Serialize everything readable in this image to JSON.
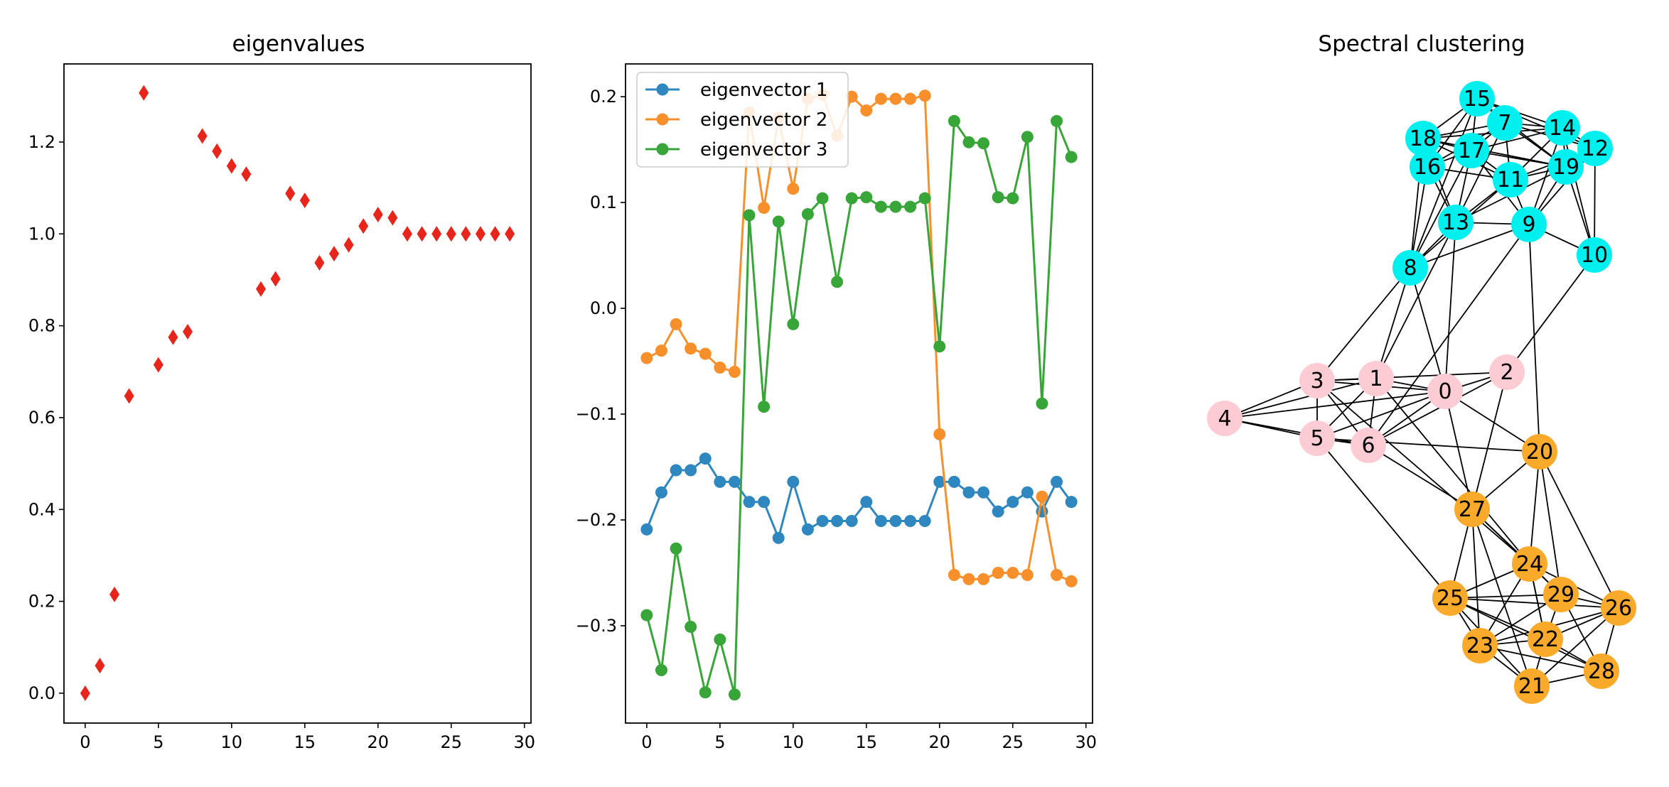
{
  "chart_data": [
    {
      "type": "scatter",
      "title": "eigenvalues",
      "xlabel": "",
      "ylabel": "",
      "xlim": [
        -1.45,
        30.45
      ],
      "ylim": [
        -0.065,
        1.37
      ],
      "xticks": [
        0,
        5,
        10,
        15,
        20,
        25,
        30
      ],
      "yticks": [
        0.0,
        0.2,
        0.4,
        0.6,
        0.8,
        1.0,
        1.2
      ],
      "ytick_labels": [
        "0.0",
        "0.2",
        "0.4",
        "0.6",
        "0.8",
        "1.0",
        "1.2"
      ],
      "marker": "diamond",
      "color": "#e8251b",
      "grid": false,
      "x": [
        0,
        1,
        2,
        3,
        4,
        5,
        6,
        7,
        8,
        9,
        10,
        11,
        12,
        13,
        14,
        15,
        16,
        17,
        18,
        19,
        20,
        21,
        22,
        23,
        24,
        25,
        26,
        27,
        28,
        29
      ],
      "y": [
        0.0,
        0.06,
        0.215,
        0.647,
        1.307,
        0.715,
        0.775,
        0.787,
        1.213,
        1.18,
        1.148,
        1.13,
        0.88,
        0.902,
        1.088,
        1.073,
        0.937,
        0.957,
        0.976,
        1.017,
        1.042,
        1.035,
        1.0,
        1.0,
        1.0,
        1.0,
        1.0,
        1.0,
        1.0,
        1.0
      ]
    },
    {
      "type": "line",
      "title": "",
      "xlabel": "",
      "ylabel": "",
      "xlim": [
        -1.45,
        30.45
      ],
      "ylim": [
        -0.392,
        0.231
      ],
      "xticks": [
        0,
        5,
        10,
        15,
        20,
        25,
        30
      ],
      "yticks": [
        -0.3,
        -0.2,
        -0.1,
        0.0,
        0.1,
        0.2
      ],
      "ytick_labels": [
        "−0.3",
        "−0.2",
        "−0.1",
        "0.0",
        "0.1",
        "0.2"
      ],
      "legend": "top-left",
      "grid": false,
      "x": [
        0,
        1,
        2,
        3,
        4,
        5,
        6,
        7,
        8,
        9,
        10,
        11,
        12,
        13,
        14,
        15,
        16,
        17,
        18,
        19,
        20,
        21,
        22,
        23,
        24,
        25,
        26,
        27,
        28,
        29
      ],
      "series": [
        {
          "name": "eigenvector 1",
          "color": "#2e87be",
          "values": [
            -0.209,
            -0.174,
            -0.153,
            -0.153,
            -0.142,
            -0.164,
            -0.164,
            -0.183,
            -0.183,
            -0.217,
            -0.164,
            -0.209,
            -0.201,
            -0.201,
            -0.201,
            -0.183,
            -0.201,
            -0.201,
            -0.201,
            -0.201,
            -0.164,
            -0.164,
            -0.174,
            -0.174,
            -0.192,
            -0.183,
            -0.174,
            -0.192,
            -0.164,
            -0.183
          ]
        },
        {
          "name": "eigenvector 2",
          "color": "#f7902a",
          "values": [
            -0.047,
            -0.04,
            -0.015,
            -0.038,
            -0.043,
            -0.056,
            -0.06,
            0.185,
            0.095,
            0.18,
            0.113,
            0.198,
            0.202,
            0.163,
            0.2,
            0.187,
            0.198,
            0.198,
            0.198,
            0.201,
            -0.119,
            -0.252,
            -0.256,
            -0.256,
            -0.25,
            -0.25,
            -0.252,
            -0.178,
            -0.252,
            -0.258
          ]
        },
        {
          "name": "eigenvector 3",
          "color": "#38a538",
          "values": [
            -0.29,
            -0.342,
            -0.227,
            -0.301,
            -0.363,
            -0.313,
            -0.365,
            0.088,
            -0.093,
            0.082,
            -0.015,
            0.089,
            0.104,
            0.025,
            0.104,
            0.105,
            0.096,
            0.096,
            0.096,
            0.104,
            -0.036,
            0.177,
            0.157,
            0.156,
            0.105,
            0.104,
            0.162,
            -0.09,
            0.177,
            0.143
          ]
        }
      ]
    },
    {
      "type": "network",
      "title": "Spectral clustering",
      "cluster_colors": [
        "#fccbd4",
        "#00f0f0",
        "#f9aa2b"
      ],
      "nodes": [
        {
          "id": "0",
          "cluster": 0
        },
        {
          "id": "1",
          "cluster": 0
        },
        {
          "id": "2",
          "cluster": 0
        },
        {
          "id": "3",
          "cluster": 0
        },
        {
          "id": "4",
          "cluster": 0
        },
        {
          "id": "5",
          "cluster": 0
        },
        {
          "id": "6",
          "cluster": 0
        },
        {
          "id": "7",
          "cluster": 1
        },
        {
          "id": "8",
          "cluster": 1
        },
        {
          "id": "9",
          "cluster": 1
        },
        {
          "id": "10",
          "cluster": 1
        },
        {
          "id": "11",
          "cluster": 1
        },
        {
          "id": "12",
          "cluster": 1
        },
        {
          "id": "13",
          "cluster": 1
        },
        {
          "id": "14",
          "cluster": 1
        },
        {
          "id": "15",
          "cluster": 1
        },
        {
          "id": "16",
          "cluster": 1
        },
        {
          "id": "17",
          "cluster": 1
        },
        {
          "id": "18",
          "cluster": 1
        },
        {
          "id": "19",
          "cluster": 1
        },
        {
          "id": "20",
          "cluster": 2
        },
        {
          "id": "21",
          "cluster": 2
        },
        {
          "id": "22",
          "cluster": 2
        },
        {
          "id": "23",
          "cluster": 2
        },
        {
          "id": "24",
          "cluster": 2
        },
        {
          "id": "25",
          "cluster": 2
        },
        {
          "id": "26",
          "cluster": 2
        },
        {
          "id": "27",
          "cluster": 2
        },
        {
          "id": "28",
          "cluster": 2
        },
        {
          "id": "29",
          "cluster": 2
        }
      ],
      "edges": [
        [
          "0",
          "1"
        ],
        [
          "0",
          "2"
        ],
        [
          "0",
          "3"
        ],
        [
          "0",
          "4"
        ],
        [
          "0",
          "5"
        ],
        [
          "0",
          "6"
        ],
        [
          "0",
          "8"
        ],
        [
          "0",
          "13"
        ],
        [
          "0",
          "20"
        ],
        [
          "0",
          "27"
        ],
        [
          "1",
          "3"
        ],
        [
          "1",
          "4"
        ],
        [
          "1",
          "5"
        ],
        [
          "1",
          "6"
        ],
        [
          "1",
          "8"
        ],
        [
          "1",
          "13"
        ],
        [
          "1",
          "24"
        ],
        [
          "2",
          "3"
        ],
        [
          "2",
          "6"
        ],
        [
          "2",
          "10"
        ],
        [
          "2",
          "27"
        ],
        [
          "3",
          "4"
        ],
        [
          "3",
          "5"
        ],
        [
          "3",
          "6"
        ],
        [
          "3",
          "8"
        ],
        [
          "3",
          "24"
        ],
        [
          "4",
          "5"
        ],
        [
          "4",
          "6"
        ],
        [
          "5",
          "6"
        ],
        [
          "5",
          "20"
        ],
        [
          "5",
          "25"
        ],
        [
          "6",
          "9"
        ],
        [
          "6",
          "27"
        ],
        [
          "7",
          "11"
        ],
        [
          "7",
          "12"
        ],
        [
          "7",
          "13"
        ],
        [
          "7",
          "14"
        ],
        [
          "7",
          "15"
        ],
        [
          "7",
          "16"
        ],
        [
          "7",
          "17"
        ],
        [
          "7",
          "18"
        ],
        [
          "7",
          "19"
        ],
        [
          "8",
          "11"
        ],
        [
          "8",
          "13"
        ],
        [
          "8",
          "15"
        ],
        [
          "8",
          "16"
        ],
        [
          "8",
          "17"
        ],
        [
          "8",
          "18"
        ],
        [
          "8",
          "9"
        ],
        [
          "9",
          "11"
        ],
        [
          "9",
          "12"
        ],
        [
          "9",
          "13"
        ],
        [
          "9",
          "14"
        ],
        [
          "9",
          "17"
        ],
        [
          "9",
          "19"
        ],
        [
          "9",
          "10"
        ],
        [
          "9",
          "20"
        ],
        [
          "10",
          "12"
        ],
        [
          "10",
          "14"
        ],
        [
          "10",
          "19"
        ],
        [
          "11",
          "12"
        ],
        [
          "11",
          "13"
        ],
        [
          "11",
          "14"
        ],
        [
          "11",
          "16"
        ],
        [
          "11",
          "17"
        ],
        [
          "11",
          "18"
        ],
        [
          "11",
          "19"
        ],
        [
          "12",
          "14"
        ],
        [
          "12",
          "15"
        ],
        [
          "12",
          "19"
        ],
        [
          "13",
          "16"
        ],
        [
          "13",
          "17"
        ],
        [
          "13",
          "18"
        ],
        [
          "13",
          "19"
        ],
        [
          "14",
          "15"
        ],
        [
          "14",
          "17"
        ],
        [
          "14",
          "18"
        ],
        [
          "14",
          "19"
        ],
        [
          "15",
          "16"
        ],
        [
          "15",
          "17"
        ],
        [
          "15",
          "18"
        ],
        [
          "15",
          "19"
        ],
        [
          "16",
          "17"
        ],
        [
          "16",
          "18"
        ],
        [
          "17",
          "18"
        ],
        [
          "17",
          "19"
        ],
        [
          "18",
          "19"
        ],
        [
          "20",
          "24"
        ],
        [
          "20",
          "26"
        ],
        [
          "20",
          "27"
        ],
        [
          "20",
          "29"
        ],
        [
          "21",
          "22"
        ],
        [
          "21",
          "23"
        ],
        [
          "21",
          "25"
        ],
        [
          "21",
          "26"
        ],
        [
          "21",
          "28"
        ],
        [
          "21",
          "27"
        ],
        [
          "22",
          "23"
        ],
        [
          "22",
          "24"
        ],
        [
          "22",
          "25"
        ],
        [
          "22",
          "26"
        ],
        [
          "22",
          "28"
        ],
        [
          "22",
          "29"
        ],
        [
          "23",
          "24"
        ],
        [
          "23",
          "25"
        ],
        [
          "23",
          "28"
        ],
        [
          "23",
          "29"
        ],
        [
          "23",
          "26"
        ],
        [
          "23",
          "27"
        ],
        [
          "24",
          "25"
        ],
        [
          "24",
          "26"
        ],
        [
          "24",
          "27"
        ],
        [
          "24",
          "29"
        ],
        [
          "24",
          "22"
        ],
        [
          "25",
          "26"
        ],
        [
          "25",
          "27"
        ],
        [
          "25",
          "29"
        ],
        [
          "25",
          "28"
        ],
        [
          "26",
          "28"
        ],
        [
          "26",
          "29"
        ],
        [
          "27",
          "29"
        ],
        [
          "28",
          "29"
        ]
      ]
    }
  ]
}
